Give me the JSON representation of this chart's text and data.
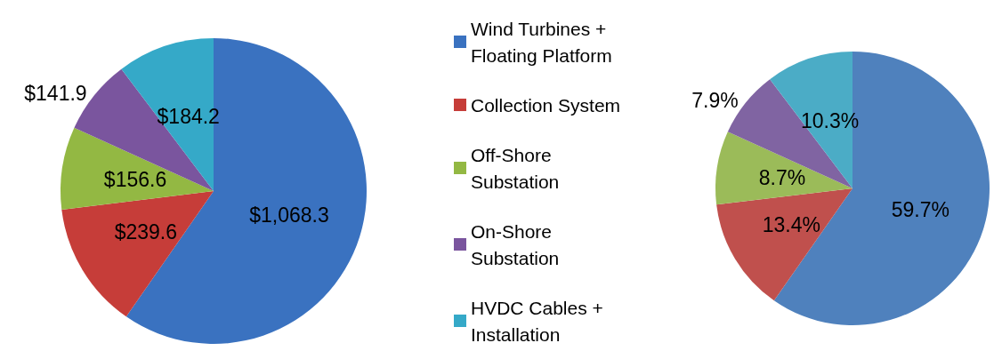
{
  "chart_data": {
    "type": "pie",
    "categories": [
      "Wind Turbines + Floating Platform",
      "Collection System",
      "Off-Shore Substation",
      "On-Shore Substation",
      "HVDC Cables + Installation"
    ],
    "legend": "right",
    "series": [
      {
        "values": [
          1068.3,
          239.6,
          156.6,
          141.9,
          184.2
        ],
        "value_labels": [
          "$1,068.3",
          "$239.6",
          "$156.6",
          "$141.9",
          "$184.2"
        ],
        "colors": [
          "#3a72c0",
          "#c63d39",
          "#93b843",
          "#7a559e",
          "#35a9c8"
        ]
      },
      {
        "values": [
          59.7,
          13.4,
          8.7,
          7.9,
          10.3
        ],
        "value_labels": [
          "59.7%",
          "13.4%",
          "8.7%",
          "7.9%",
          "10.3%"
        ],
        "colors": [
          "#4f81bd",
          "#c0504d",
          "#9bbb59",
          "#8064a2",
          "#4bacc6"
        ]
      }
    ]
  }
}
